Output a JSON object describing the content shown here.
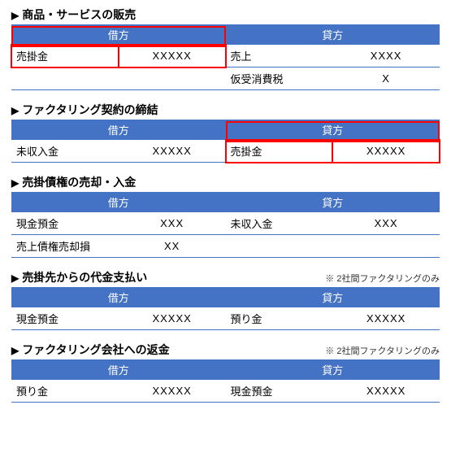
{
  "colors": {
    "header_bg": "#4472c4",
    "header_text": "#ffffff",
    "row_border": "#4472c4",
    "highlight_border": "#ff0000",
    "text": "#000000",
    "background": "#ffffff"
  },
  "typography": {
    "title_fontsize": 14,
    "body_fontsize": 13,
    "note_fontsize": 11,
    "title_weight": "bold"
  },
  "header_labels": {
    "debit": "借方",
    "credit": "貸方"
  },
  "sections": [
    {
      "title": "商品・サービスの販売",
      "note": "",
      "rows": [
        {
          "d_acct": "売掛金",
          "d_amt": "XXXXX",
          "c_acct": "売上",
          "c_amt": "XXXX",
          "hl_debit": true,
          "hl_credit": false
        },
        {
          "d_acct": "",
          "d_amt": "",
          "c_acct": "仮受消費税",
          "c_amt": "X",
          "hl_debit": false,
          "hl_credit": false
        }
      ]
    },
    {
      "title": "ファクタリング契約の締結",
      "note": "",
      "rows": [
        {
          "d_acct": "未収入金",
          "d_amt": "XXXXX",
          "c_acct": "売掛金",
          "c_amt": "XXXXX",
          "hl_debit": false,
          "hl_credit": true
        }
      ]
    },
    {
      "title": "売掛債権の売却・入金",
      "note": "",
      "rows": [
        {
          "d_acct": "現金預金",
          "d_amt": "XXX",
          "c_acct": "未収入金",
          "c_amt": "XXX",
          "hl_debit": false,
          "hl_credit": false
        },
        {
          "d_acct": "売上債権売却損",
          "d_amt": "XX",
          "c_acct": "",
          "c_amt": "",
          "hl_debit": false,
          "hl_credit": false
        }
      ]
    },
    {
      "title": "売掛先からの代金支払い",
      "note": "※ 2社間ファクタリングのみ",
      "rows": [
        {
          "d_acct": "現金預金",
          "d_amt": "XXXXX",
          "c_acct": "預り金",
          "c_amt": "XXXXX",
          "hl_debit": false,
          "hl_credit": false
        }
      ]
    },
    {
      "title": "ファクタリング会社への返金",
      "note": "※ 2社間ファクタリングのみ",
      "rows": [
        {
          "d_acct": "預り金",
          "d_amt": "XXXXX",
          "c_acct": "現金預金",
          "c_amt": "XXXXX",
          "hl_debit": false,
          "hl_credit": false
        }
      ]
    }
  ]
}
